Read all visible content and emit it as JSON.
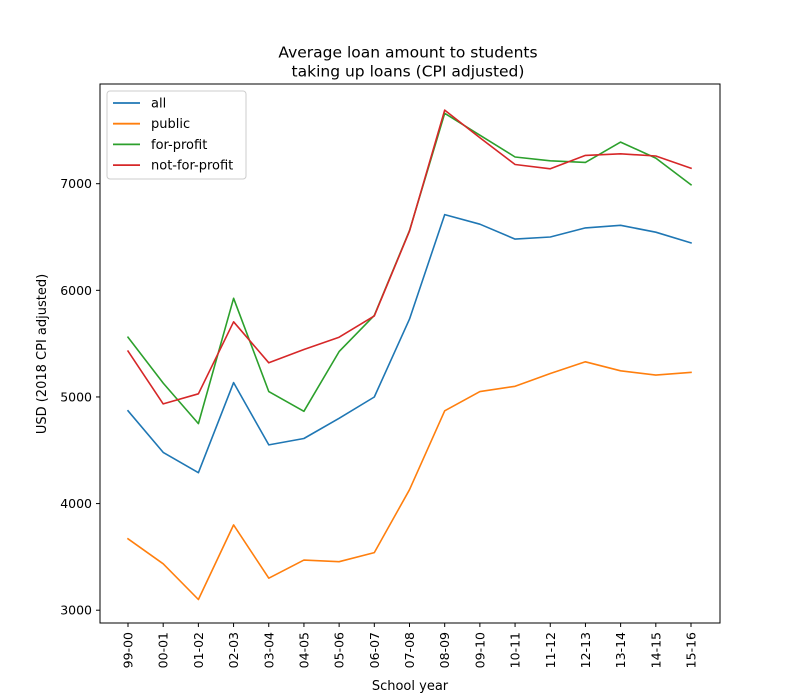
{
  "chart_data": {
    "type": "line",
    "title": "Average loan amount to students\ntaking up loans (CPI adjusted)",
    "title_lines": [
      "Average loan amount to students",
      "taking up loans (CPI adjusted)"
    ],
    "xlabel": "School year",
    "ylabel": "USD (2018 CPI adjusted)",
    "categories": [
      "99-00",
      "00-01",
      "01-02",
      "02-03",
      "03-04",
      "04-05",
      "05-06",
      "06-07",
      "07-08",
      "08-09",
      "09-10",
      "10-11",
      "11-12",
      "12-13",
      "13-14",
      "14-15",
      "15-16"
    ],
    "yticks": [
      3000,
      4000,
      5000,
      6000,
      7000
    ],
    "yticks_labels": [
      "3000",
      "4000",
      "5000",
      "6000",
      "7000"
    ],
    "ylim": [
      2880,
      7935
    ],
    "grid": false,
    "legend_position": "upper-left",
    "series": [
      {
        "name": "all",
        "color": "#1f77b4",
        "values": [
          4870,
          4480,
          4290,
          5135,
          4550,
          4610,
          4800,
          5000,
          5730,
          6710,
          6620,
          6480,
          6500,
          6585,
          6610,
          6545,
          6445
        ]
      },
      {
        "name": "public",
        "color": "#ff7f0e",
        "values": [
          3670,
          3435,
          3100,
          3800,
          3300,
          3470,
          3455,
          3540,
          4130,
          4870,
          5050,
          5100,
          5220,
          5330,
          5245,
          5205,
          5230
        ]
      },
      {
        "name": "for-profit",
        "color": "#2ca02c",
        "values": [
          5560,
          5130,
          4750,
          5925,
          5050,
          4865,
          5425,
          5765,
          6560,
          7660,
          7455,
          7250,
          7215,
          7200,
          7390,
          7240,
          6990
        ]
      },
      {
        "name": "not-for-profit",
        "color": "#d62728",
        "values": [
          5430,
          4935,
          5030,
          5705,
          5320,
          5445,
          5560,
          5760,
          6555,
          7690,
          7430,
          7180,
          7140,
          7265,
          7280,
          7260,
          7145
        ]
      }
    ]
  }
}
